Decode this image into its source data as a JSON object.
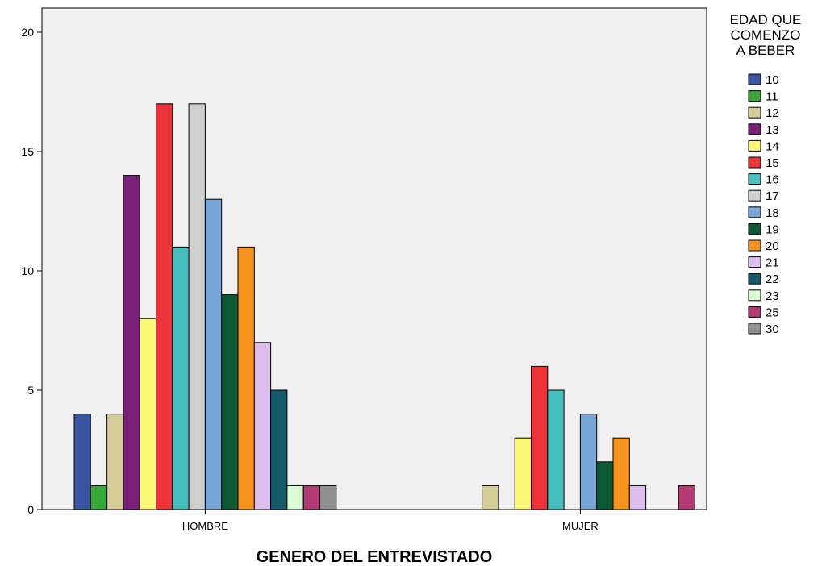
{
  "chart_data": {
    "type": "bar",
    "title": "",
    "xlabel": "GENERO DEL ENTREVISTADO",
    "ylabel": "",
    "ylim": [
      0,
      20
    ],
    "yticks": [
      0,
      5,
      10,
      15,
      20
    ],
    "grid": false,
    "legend_placement": "right",
    "legend_title_lines": [
      "EDAD QUE",
      "COMENZO",
      "A BEBER"
    ],
    "categories": [
      "HOMBRE",
      "MUJER"
    ],
    "series": [
      {
        "name": "10",
        "color": "#3a54a4",
        "values": [
          4,
          0
        ]
      },
      {
        "name": "11",
        "color": "#36a836",
        "values": [
          1,
          0
        ]
      },
      {
        "name": "12",
        "color": "#d6cc98",
        "values": [
          4,
          1
        ]
      },
      {
        "name": "13",
        "color": "#7a2078",
        "values": [
          14,
          0
        ]
      },
      {
        "name": "14",
        "color": "#fbf774",
        "values": [
          8,
          3
        ]
      },
      {
        "name": "15",
        "color": "#ee3338",
        "values": [
          17,
          6
        ]
      },
      {
        "name": "16",
        "color": "#45bfbe",
        "values": [
          11,
          5
        ]
      },
      {
        "name": "17",
        "color": "#cfcfcf",
        "values": [
          17,
          0
        ]
      },
      {
        "name": "18",
        "color": "#78a6d6",
        "values": [
          13,
          4
        ]
      },
      {
        "name": "19",
        "color": "#0c5a34",
        "values": [
          9,
          2
        ]
      },
      {
        "name": "20",
        "color": "#f7941d",
        "values": [
          11,
          3
        ]
      },
      {
        "name": "21",
        "color": "#dcbdee",
        "values": [
          7,
          1
        ]
      },
      {
        "name": "22",
        "color": "#155a6b",
        "values": [
          5,
          0
        ]
      },
      {
        "name": "23",
        "color": "#d8fdd0",
        "values": [
          1,
          0
        ]
      },
      {
        "name": "25",
        "color": "#b33a72",
        "values": [
          1,
          1
        ]
      },
      {
        "name": "30",
        "color": "#8f8f8f",
        "values": [
          1,
          0
        ]
      }
    ]
  }
}
